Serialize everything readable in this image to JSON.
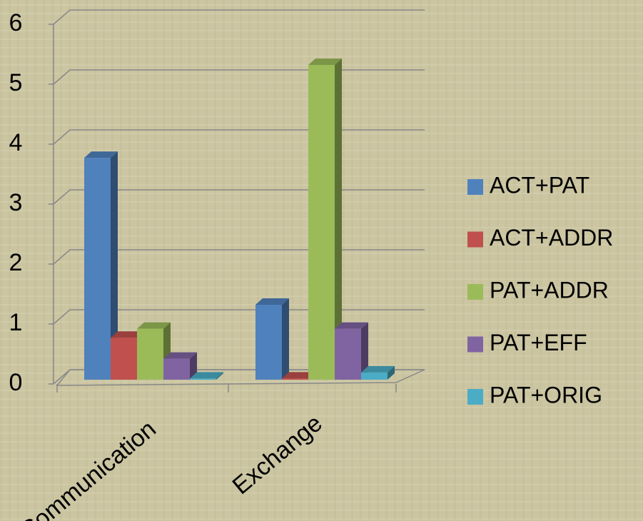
{
  "chart_data": {
    "type": "bar3d",
    "categories": [
      "Communication",
      "Exchange"
    ],
    "series": [
      {
        "name": "ACT+PAT",
        "color": "#4f81bd",
        "values": [
          3.7,
          1.25
        ]
      },
      {
        "name": "ACT+ADDR",
        "color": "#c0504d",
        "values": [
          0.7,
          0.02
        ]
      },
      {
        "name": "PAT+ADDR",
        "color": "#9bbb59",
        "values": [
          0.85,
          5.25
        ]
      },
      {
        "name": "PAT+EFF",
        "color": "#8064a2",
        "values": [
          0.35,
          0.85
        ]
      },
      {
        "name": "PAT+ORIG",
        "color": "#4bacc6",
        "values": [
          0.02,
          0.12
        ]
      }
    ],
    "ylim": [
      0,
      6
    ],
    "yticks": [
      0,
      1,
      2,
      3,
      4,
      5,
      6
    ],
    "grid": true,
    "legend": "right"
  }
}
